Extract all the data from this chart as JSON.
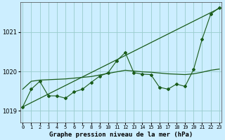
{
  "title": "Graphe pression niveau de la mer (hPa)",
  "bg_color": "#cceeff",
  "grid_color": "#99cccc",
  "line_color": "#1a5c1a",
  "x_labels": [
    "0",
    "1",
    "2",
    "3",
    "4",
    "5",
    "6",
    "7",
    "8",
    "9",
    "10",
    "11",
    "12",
    "13",
    "14",
    "15",
    "16",
    "17",
    "18",
    "19",
    "20",
    "21",
    "22",
    "23"
  ],
  "ylim": [
    1018.7,
    1021.75
  ],
  "yticks": [
    1019,
    1020,
    1021
  ],
  "xlim": [
    -0.3,
    23.3
  ],
  "straight_line": {
    "x": [
      0,
      23
    ],
    "y": [
      1019.1,
      1021.6
    ]
  },
  "smooth_line": [
    1019.55,
    1019.75,
    1019.78,
    1019.78,
    1019.79,
    1019.8,
    1019.82,
    1019.84,
    1019.86,
    1019.9,
    1019.94,
    1019.98,
    1020.02,
    1020.0,
    1019.98,
    1019.97,
    1019.95,
    1019.93,
    1019.92,
    1019.91,
    1019.93,
    1019.97,
    1020.02,
    1020.05
  ],
  "jagged_line": [
    1019.1,
    1019.55,
    1019.75,
    1019.38,
    1019.38,
    1019.32,
    1019.48,
    1019.55,
    1019.72,
    1019.88,
    1019.97,
    1020.27,
    1020.48,
    1019.97,
    1019.93,
    1019.92,
    1019.6,
    1019.55,
    1019.68,
    1019.62,
    1020.05,
    1020.82,
    1021.45,
    1021.62
  ]
}
